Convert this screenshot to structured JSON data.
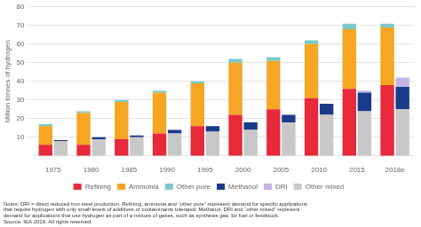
{
  "chart_data": {
    "type": "bar",
    "categories": [
      "1975",
      "1980",
      "1985",
      "1990",
      "1995",
      "2000",
      "2005",
      "2010",
      "2015",
      "2018e"
    ],
    "series": [
      {
        "name": "Refining",
        "color": "#e8293a",
        "values": [
          6,
          6,
          9,
          12,
          16,
          22,
          25,
          31,
          36,
          38
        ]
      },
      {
        "name": "Ammonia",
        "color": "#f5a623",
        "values": [
          10,
          17,
          20,
          22,
          23,
          28,
          26,
          29,
          32,
          31
        ]
      },
      {
        "name": "Other pure",
        "color": "#7ec8c8",
        "values": [
          1,
          1,
          1,
          1,
          1,
          2,
          2,
          2,
          3,
          2
        ]
      },
      {
        "name": "Methanol",
        "color": "#1a3a8a",
        "values": [
          0.5,
          1,
          1,
          2,
          3,
          4,
          4,
          6,
          10,
          12
        ]
      },
      {
        "name": "DRI",
        "color": "#c5b4e3",
        "values": [
          0,
          0,
          0,
          0,
          0,
          0,
          0,
          0,
          1,
          5
        ]
      },
      {
        "name": "Other mixed",
        "color": "#c8c8c8",
        "values": [
          8,
          9,
          10,
          12,
          13,
          14,
          18,
          22,
          24,
          25
        ]
      }
    ],
    "stacked": [
      [
        "Refining",
        "Ammonia",
        "Other pure"
      ],
      [
        "Other mixed",
        "Methanol",
        "DRI"
      ]
    ],
    "ylabel": "Million tonnes of hydrogen",
    "ylim": [
      0,
      80
    ],
    "yticks": [
      10,
      20,
      30,
      40,
      50,
      60,
      70,
      80
    ],
    "grid": true,
    "legend": "bottom",
    "annotations": [
      "Notes: DRI = direct reduced iron steel production. Refining, ammonia and “other pure” represent demand for specific applications\nthat require hydrogen with only small levels of additives or contaminants tolerated. Methanol, DRI and “other mixed” represent\ndemand for applications that use hydrogen as part of a mixture of gases, such as synthesis gas, for fuel or feedstock.\nSource: IEA 2019. All rights reserved."
    ]
  }
}
